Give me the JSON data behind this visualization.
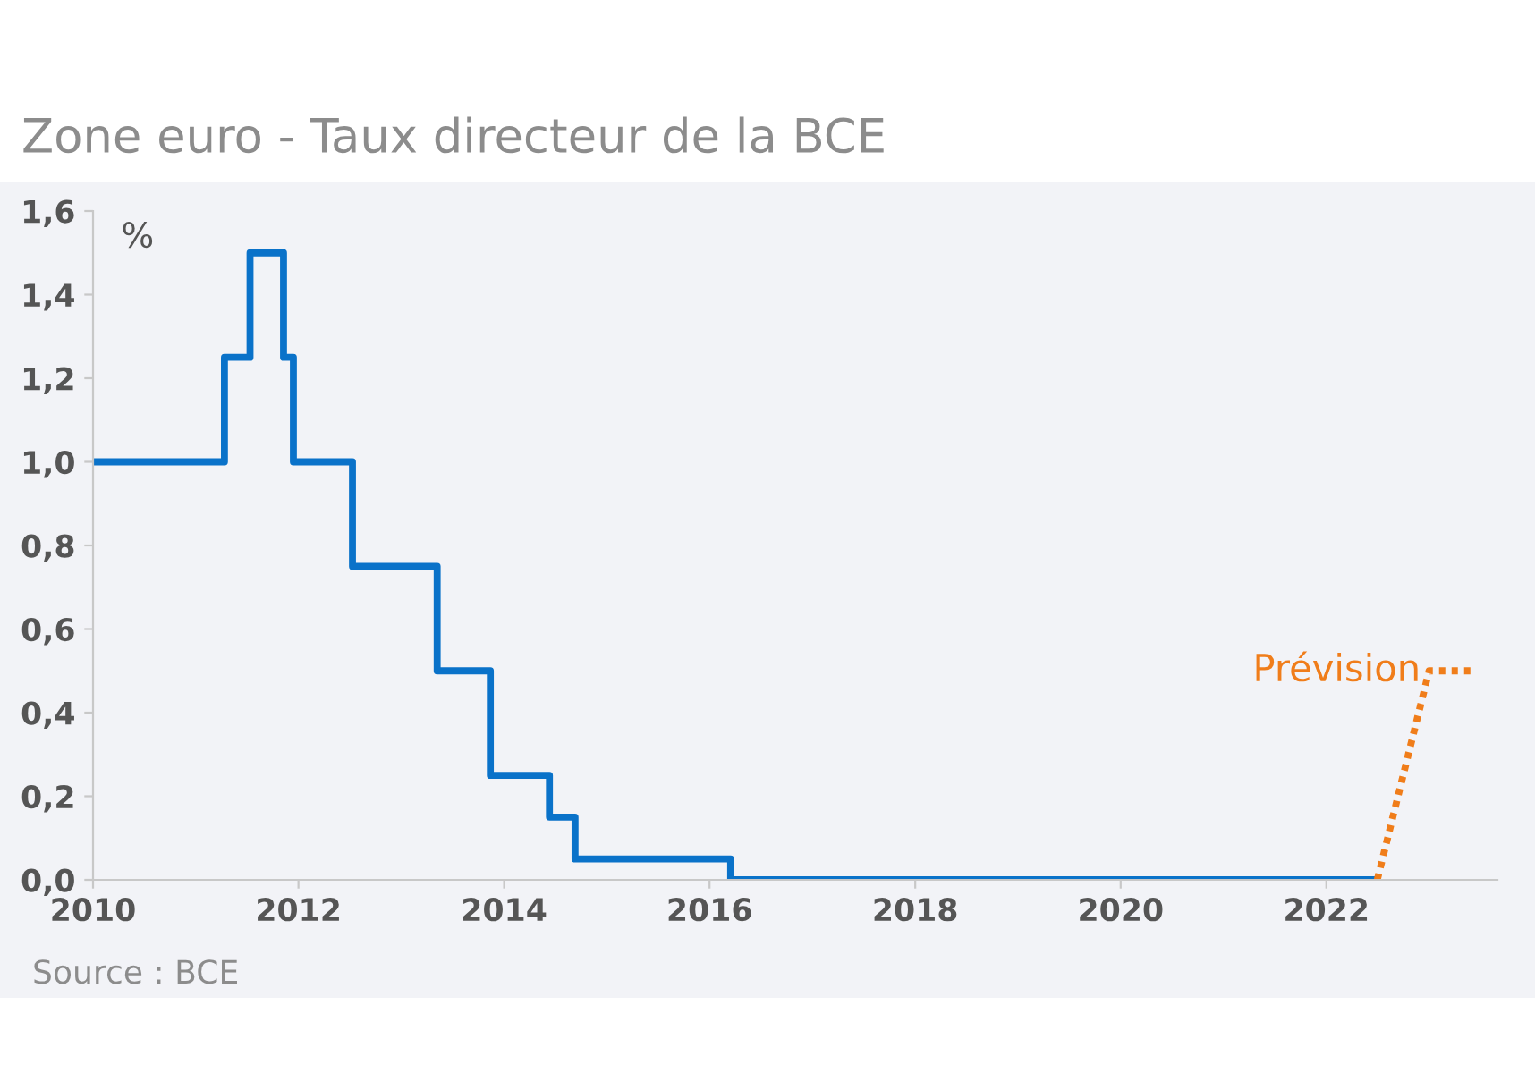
{
  "chart_data": {
    "type": "step",
    "title": "Zone euro - Taux directeur de la BCE",
    "ylabel": "%",
    "series": [
      {
        "color": "#0a72c9",
        "x": [
          "2010-01-01",
          "2011-04-13",
          "2011-07-13",
          "2011-11-09",
          "2011-12-14",
          "2012-07-11",
          "2013-05-08",
          "2013-11-13",
          "2014-06-11",
          "2014-09-10",
          "2016-03-16",
          "2022-07-01"
        ],
        "values": [
          1.0,
          1.25,
          1.5,
          1.25,
          1.0,
          0.75,
          0.5,
          0.25,
          0.15,
          0.05,
          0.0,
          0.0
        ]
      },
      {
        "type": "line",
        "name": "Prévision",
        "color": "#f07d1a",
        "line_style": "dotted",
        "x": [
          "2022-07-01",
          "2023-01-01",
          "2023-06-01"
        ],
        "values": [
          0.0,
          0.5,
          0.5
        ]
      }
    ],
    "xlim": [
      "2010-01-01",
      "2023-09-01"
    ],
    "xticks": [
      {
        "value": "2010-01-01",
        "label": "2010"
      },
      {
        "value": "2012-01-01",
        "label": "2012"
      },
      {
        "value": "2014-01-01",
        "label": "2014"
      },
      {
        "value": "2016-01-01",
        "label": "2016"
      },
      {
        "value": "2018-01-01",
        "label": "2018"
      },
      {
        "value": "2020-01-01",
        "label": "2020"
      },
      {
        "value": "2022-01-01",
        "label": "2022"
      }
    ],
    "ylim": [
      0,
      1.6
    ],
    "yticks": [
      {
        "value": 0,
        "label": "0,0"
      },
      {
        "value": 0.2,
        "label": "0,2"
      },
      {
        "value": 0.4,
        "label": "0,4"
      },
      {
        "value": 0.6,
        "label": "0,6"
      },
      {
        "value": 0.8,
        "label": "0,8"
      },
      {
        "value": 1.0,
        "label": "1,0"
      },
      {
        "value": 1.2,
        "label": "1,2"
      },
      {
        "value": 1.4,
        "label": "1,4"
      },
      {
        "value": 1.6,
        "label": "1,6"
      }
    ],
    "grid": false,
    "legend": false,
    "annotations": [
      "Source : BCE"
    ]
  }
}
